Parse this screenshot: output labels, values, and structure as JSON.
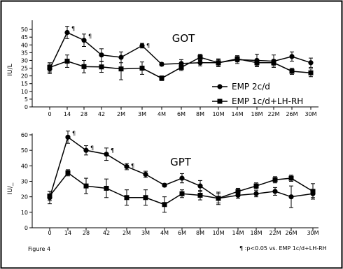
{
  "figure_label": "Figure 4",
  "footnote": "¶ :p<0.05 vs. EMP 1c/d+LH-RH",
  "chart_data": [
    {
      "type": "line",
      "title": "GOT",
      "ylabel": "IU/L",
      "xlabel": "",
      "ylim": [
        0,
        55
      ],
      "yticks": [
        0,
        5,
        10,
        15,
        20,
        25,
        30,
        35,
        40,
        45,
        50
      ],
      "grid": false,
      "legend_position": "center-right",
      "categories": [
        "0",
        "14",
        "28",
        "42",
        "2M",
        "3M",
        "4M",
        "6M",
        "8M",
        "10M",
        "14M",
        "18M",
        "22M",
        "26M",
        "30M"
      ],
      "series": [
        {
          "name": "EMP 2c/d",
          "marker": "circle",
          "values": [
            24.5,
            48,
            43,
            33.5,
            32,
            39.5,
            27.5,
            28,
            28.5,
            28.5,
            30.5,
            30,
            29.5,
            32.5,
            28.5
          ],
          "errors": [
            3,
            4,
            4,
            4,
            3.5,
            1.5,
            1,
            2.5,
            2,
            2.5,
            2.5,
            4,
            4,
            3,
            3
          ]
        },
        {
          "name": "EMP 1c/d+LH-RH",
          "marker": "square",
          "values": [
            25.5,
            29.5,
            26,
            25.8,
            24.5,
            25,
            18.5,
            25.5,
            32,
            28.5,
            31,
            28.5,
            28.5,
            23,
            22
          ],
          "errors": [
            3,
            4,
            4,
            3.5,
            7,
            4,
            1.5,
            2,
            2,
            2,
            2,
            2,
            2,
            2,
            2.5
          ]
        }
      ],
      "significance_marks": [
        "14",
        "28",
        "3M"
      ],
      "significance_symbol": "¶"
    },
    {
      "type": "line",
      "title": "GPT",
      "ylabel": "IU/_",
      "xlabel": "",
      "ylim": [
        0,
        60
      ],
      "yticks": [
        0,
        10,
        20,
        30,
        40,
        50,
        60
      ],
      "grid": false,
      "categories": [
        "0",
        "14",
        "28",
        "42",
        "2M",
        "3M",
        "4M",
        "6M",
        "8M",
        "10M",
        "14M",
        "18M",
        "22M",
        "26M",
        "30M"
      ],
      "series": [
        {
          "name": "EMP 2c/d",
          "marker": "circle",
          "values": [
            19.5,
            58.5,
            50,
            47.5,
            39.5,
            34.5,
            27.5,
            32,
            27,
            19,
            21,
            22,
            23.5,
            20,
            22
          ],
          "errors": [
            4,
            4,
            3,
            4,
            2,
            2,
            1,
            3,
            3.5,
            3,
            2,
            2,
            2.5,
            7,
            2.5
          ]
        },
        {
          "name": "EMP 1c/d+LH-RH",
          "marker": "square",
          "values": [
            20.5,
            35.5,
            27,
            25.5,
            19.5,
            19.5,
            15,
            22,
            21,
            19,
            23.5,
            27,
            31,
            32,
            23.5
          ],
          "errors": [
            3,
            2,
            5,
            6,
            5,
            5,
            5,
            2.5,
            3,
            4,
            2,
            2,
            2,
            2,
            5
          ]
        }
      ],
      "significance_marks": [
        "14",
        "28",
        "42",
        "2M"
      ],
      "significance_symbol": "¶"
    }
  ]
}
